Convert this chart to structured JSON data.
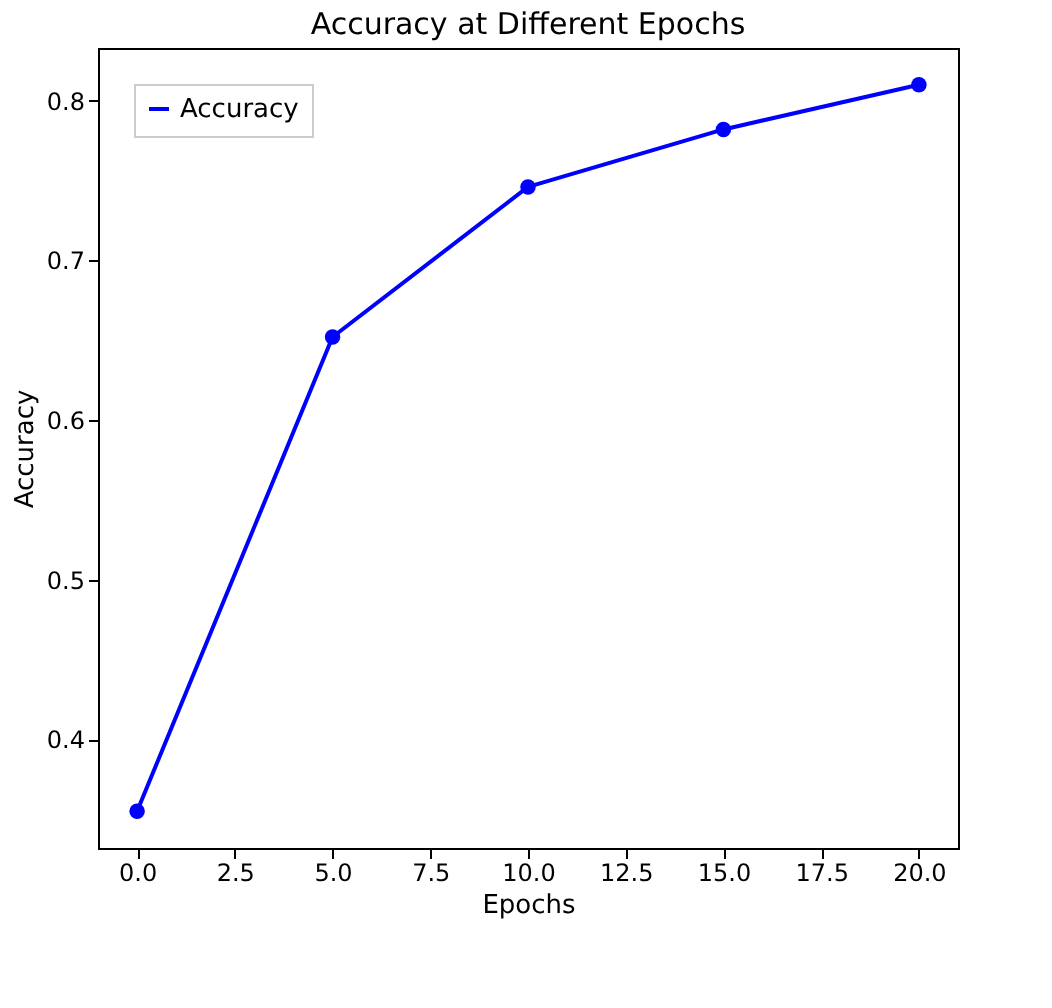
{
  "chart_data": {
    "type": "line",
    "title": "Accuracy at Different Epochs",
    "xlabel": "Epochs",
    "ylabel": "Accuracy",
    "x": [
      0,
      5,
      10,
      15,
      20
    ],
    "series": [
      {
        "name": "Accuracy",
        "color": "#0000ff",
        "values": [
          0.355,
          0.652,
          0.746,
          0.782,
          0.81
        ]
      }
    ],
    "xlim": [
      -1,
      21
    ],
    "ylim": [
      0.332,
      0.833
    ],
    "xticks": [
      {
        "value": 0,
        "label": "0.0"
      },
      {
        "value": 2.5,
        "label": "2.5"
      },
      {
        "value": 5,
        "label": "5.0"
      },
      {
        "value": 7.5,
        "label": "7.5"
      },
      {
        "value": 10,
        "label": "10.0"
      },
      {
        "value": 12.5,
        "label": "12.5"
      },
      {
        "value": 15,
        "label": "15.0"
      },
      {
        "value": 17.5,
        "label": "17.5"
      },
      {
        "value": 20,
        "label": "20.0"
      }
    ],
    "yticks": [
      0.4,
      0.5,
      0.6,
      0.7,
      0.8
    ],
    "legend": "top left",
    "marker": "circle",
    "line_style": "solid",
    "grid": false
  }
}
